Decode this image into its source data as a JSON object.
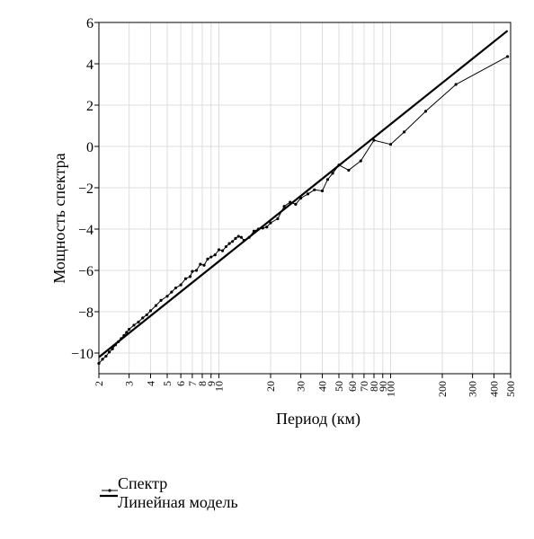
{
  "chart_data": {
    "type": "line",
    "title": "",
    "xlabel": "Период (км)",
    "ylabel": "Мощность спектра",
    "x_scale": "log",
    "xlim": [
      2,
      500
    ],
    "ylim": [
      -11,
      6
    ],
    "yticks": [
      -10,
      -8,
      -6,
      -4,
      -2,
      0,
      2,
      4,
      6
    ],
    "yticklabels": [
      "−10",
      "−8",
      "−6",
      "−4",
      "−2",
      "0",
      "2",
      "4",
      "6"
    ],
    "xticks": [
      2,
      3,
      4,
      5,
      6,
      7,
      8,
      9,
      10,
      20,
      30,
      40,
      50,
      60,
      70,
      80,
      90,
      100,
      200,
      300,
      400,
      500
    ],
    "xticklabels": [
      "2",
      "3",
      "4",
      "5",
      "6",
      "7",
      "8",
      "9",
      "10",
      "20",
      "30",
      "40",
      "50",
      "60",
      "70",
      "80",
      "90",
      "100",
      "200",
      "300",
      "400",
      "500"
    ],
    "grid": true,
    "legend_position": "bottom-left, below plot",
    "series": [
      {
        "name": "Спектр",
        "style": "line with point markers",
        "color": "#000000",
        "x": [
          2.0,
          2.1,
          2.2,
          2.3,
          2.4,
          2.5,
          2.6,
          2.7,
          2.8,
          2.9,
          3.0,
          3.2,
          3.4,
          3.6,
          3.8,
          4.0,
          4.3,
          4.6,
          5.0,
          5.3,
          5.6,
          6.0,
          6.4,
          6.8,
          7.0,
          7.4,
          7.8,
          8.2,
          8.6,
          9.0,
          9.5,
          10.0,
          10.5,
          11.0,
          11.5,
          12.0,
          12.5,
          13.0,
          13.5,
          14.0,
          15.0,
          16.0,
          17.0,
          18.0,
          19.0,
          20.0,
          22.0,
          24.0,
          26.0,
          28.0,
          30.0,
          33.0,
          36.0,
          40.0,
          43.0,
          46.0,
          50.0,
          57.0,
          67.0,
          80.0,
          100.0,
          120.0,
          160.0,
          240.0,
          480.0
        ],
        "y": [
          -10.5,
          -10.3,
          -10.15,
          -9.95,
          -9.8,
          -9.6,
          -9.45,
          -9.3,
          -9.15,
          -9.0,
          -8.85,
          -8.65,
          -8.5,
          -8.3,
          -8.15,
          -7.95,
          -7.7,
          -7.45,
          -7.25,
          -7.05,
          -6.85,
          -6.7,
          -6.4,
          -6.3,
          -6.05,
          -6.0,
          -5.7,
          -5.75,
          -5.45,
          -5.35,
          -5.25,
          -5.0,
          -5.05,
          -4.85,
          -4.7,
          -4.6,
          -4.45,
          -4.35,
          -4.4,
          -4.55,
          -4.4,
          -4.1,
          -4.0,
          -3.95,
          -3.9,
          -3.7,
          -3.5,
          -2.9,
          -2.7,
          -2.8,
          -2.5,
          -2.3,
          -2.1,
          -2.15,
          -1.6,
          -1.3,
          -0.9,
          -1.15,
          -0.7,
          0.3,
          0.1,
          0.7,
          1.7,
          3.0,
          4.35
        ]
      },
      {
        "name": "Линейная модель",
        "style": "thick line",
        "color": "#000000",
        "x": [
          2,
          480
        ],
        "y": [
          -10.2,
          5.6
        ]
      }
    ]
  }
}
